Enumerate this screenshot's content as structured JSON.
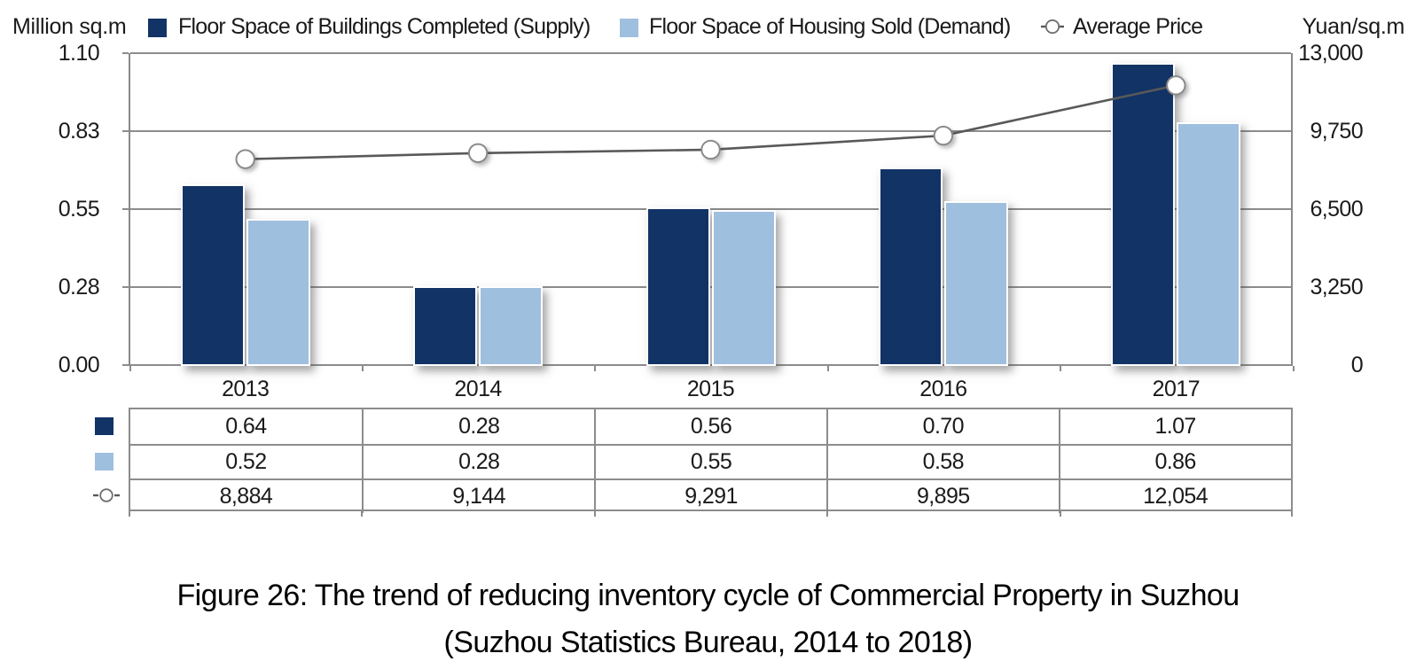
{
  "chart_data": {
    "type": "bar",
    "categories": [
      "2013",
      "2014",
      "2015",
      "2016",
      "2017"
    ],
    "series": [
      {
        "name": "Floor Space of Buildings Completed (Supply)",
        "type": "bar",
        "color": "#123365",
        "values": [
          0.64,
          0.28,
          0.56,
          0.7,
          1.07
        ],
        "labels": [
          "0.64",
          "0.28",
          "0.56",
          "0.70",
          "1.07"
        ]
      },
      {
        "name": "Floor Space of Housing Sold (Demand)",
        "type": "bar",
        "color": "#9FBFDF",
        "values": [
          0.52,
          0.28,
          0.55,
          0.58,
          0.86
        ],
        "labels": [
          "0.52",
          "0.28",
          "0.55",
          "0.58",
          "0.86"
        ]
      },
      {
        "name": "Average Price",
        "type": "line",
        "color": "#595959",
        "marker": "circle",
        "values": [
          8884,
          9144,
          9291,
          9895,
          12054
        ],
        "labels": [
          "8,884",
          "9,144",
          "9,291",
          "9,895",
          "12,054"
        ]
      }
    ],
    "left_axis": {
      "title": "Million sq.m",
      "ticks": [
        "1.10",
        "0.83",
        "0.55",
        "0.28",
        "0.00"
      ],
      "min": 0,
      "max": 1.1
    },
    "right_axis": {
      "title": "Yuan/sq.m",
      "ticks": [
        "13,000",
        "9,750",
        "6,500",
        "3,250",
        "0"
      ],
      "min": 0,
      "max": 13000
    },
    "legend_position": "top",
    "grid": true,
    "data_table": true
  },
  "caption": {
    "line1": "Figure 26: The trend of reducing inventory cycle of Commercial Property in Suzhou",
    "line2": "(Suzhou Statistics Bureau, 2014 to 2018)"
  },
  "colors": {
    "supply_bar": "#123365",
    "demand_bar": "#9FBFDF",
    "price_line": "#595959",
    "marker_stroke": "#8a8a8a",
    "grid": "#8c8c8c",
    "text": "#1a1a1a"
  }
}
